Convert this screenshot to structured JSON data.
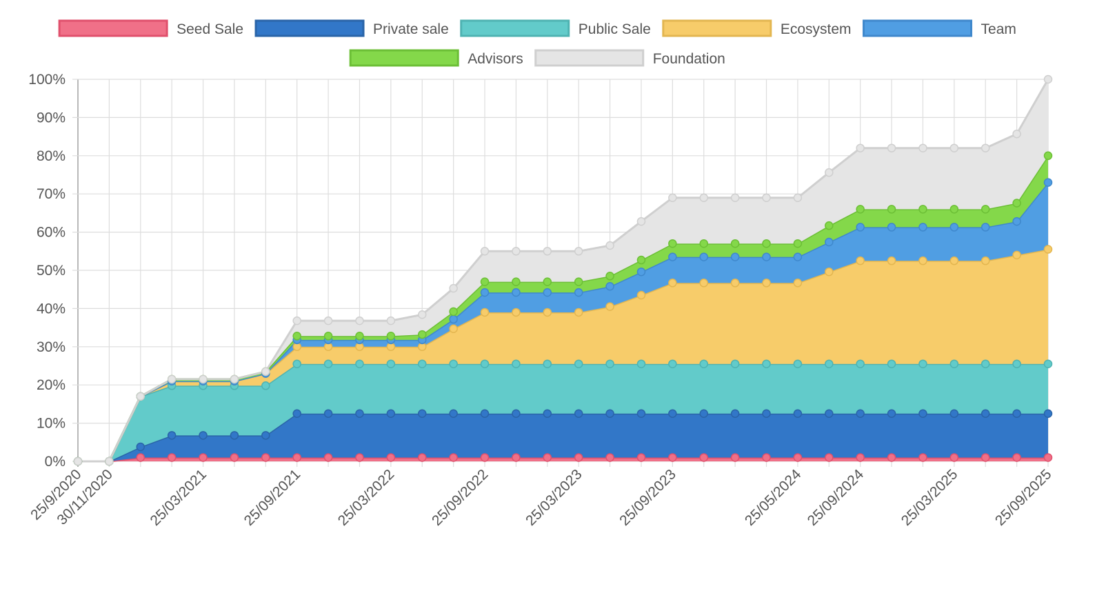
{
  "chart_data": {
    "type": "stacked-area",
    "legend": "top",
    "grid": true,
    "categories": [
      "25/9/2020",
      "30/11/2020",
      null,
      null,
      "25/03/2021",
      null,
      null,
      "25/09/2021",
      null,
      null,
      "25/03/2022",
      null,
      null,
      "25/09/2022",
      null,
      null,
      "25/03/2023",
      null,
      null,
      "25/09/2023",
      null,
      null,
      null,
      "25/05/2024",
      null,
      "25/09/2024",
      null,
      null,
      "25/03/2025",
      null,
      null,
      "25/09/2025"
    ],
    "ylim": [
      0,
      100
    ],
    "yticks": [
      {
        "value": 0,
        "label": "0%"
      },
      {
        "value": 10,
        "label": "10%"
      },
      {
        "value": 20,
        "label": "20%"
      },
      {
        "value": 30,
        "label": "30%"
      },
      {
        "value": 40,
        "label": "40%"
      },
      {
        "value": 50,
        "label": "50%"
      },
      {
        "value": 60,
        "label": "60%"
      },
      {
        "value": 70,
        "label": "70%"
      },
      {
        "value": 80,
        "label": "80%"
      },
      {
        "value": 90,
        "label": "90%"
      },
      {
        "value": 100,
        "label": "100%"
      }
    ],
    "series": [
      {
        "name": "Seed Sale",
        "color": "#f07088",
        "border": "#e0506c",
        "values": [
          0,
          0,
          1,
          1,
          1,
          1,
          1,
          1,
          1,
          1,
          1,
          1,
          1,
          1,
          1,
          1,
          1,
          1,
          1,
          1,
          1,
          1,
          1,
          1,
          1,
          1,
          1,
          1,
          1,
          1,
          1,
          1
        ]
      },
      {
        "name": "Private sale",
        "color": "#3277c8",
        "border": "#2a64a8",
        "values": [
          0,
          0,
          2.8,
          5.8,
          5.8,
          5.8,
          5.8,
          11.5,
          11.5,
          11.5,
          11.5,
          11.5,
          11.5,
          11.5,
          11.5,
          11.5,
          11.5,
          11.5,
          11.5,
          11.5,
          11.5,
          11.5,
          11.5,
          11.5,
          11.5,
          11.5,
          11.5,
          11.5,
          11.5,
          11.5,
          11.5,
          11.5
        ]
      },
      {
        "name": "Public Sale",
        "color": "#62cbca",
        "border": "#4eb3b2",
        "values": [
          0,
          0,
          13.2,
          13,
          13,
          13,
          13,
          13,
          13,
          13,
          13,
          13,
          13,
          13,
          13,
          13,
          13,
          13,
          13,
          13,
          13,
          13,
          13,
          13,
          13,
          13,
          13,
          13,
          13,
          13,
          13,
          13
        ]
      },
      {
        "name": "Ecosystem",
        "color": "#f7cc6a",
        "border": "#e3b650",
        "values": [
          0,
          0,
          0,
          1.2,
          1.2,
          1.2,
          3.2,
          4.5,
          4.5,
          4.5,
          4.5,
          4.5,
          9.2,
          13.5,
          13.5,
          13.5,
          13.5,
          15,
          18,
          21.2,
          21.2,
          21.2,
          21.2,
          21.2,
          24.1,
          27,
          27,
          27,
          27,
          27,
          28.5,
          30
        ]
      },
      {
        "name": "Team",
        "color": "#509ee3",
        "border": "#3f88cc",
        "values": [
          0,
          0,
          0,
          0,
          0,
          0,
          0,
          1.8,
          1.8,
          1.8,
          1.8,
          1.8,
          2.5,
          5.2,
          5.2,
          5.2,
          5.2,
          5.3,
          6.1,
          6.8,
          6.8,
          6.8,
          6.8,
          6.8,
          7.8,
          8.8,
          8.8,
          8.8,
          8.8,
          8.8,
          8.8,
          17.5
        ]
      },
      {
        "name": "Advisors",
        "color": "#84d84a",
        "border": "#6cbf36",
        "values": [
          0,
          0,
          0,
          0.5,
          0.5,
          0.5,
          0.5,
          1,
          1,
          1,
          1,
          1.4,
          2,
          2.8,
          2.8,
          2.8,
          2.8,
          2.7,
          3.1,
          3.5,
          3.5,
          3.5,
          3.5,
          3.5,
          4.3,
          4.7,
          4.7,
          4.7,
          4.7,
          4.7,
          4.8,
          7
        ]
      },
      {
        "name": "Foundation",
        "color": "#e5e5e5",
        "border": "#cfcfcf",
        "values": [
          0,
          0,
          0,
          0,
          0,
          0,
          0,
          4,
          4,
          4,
          4,
          5.2,
          6.1,
          8,
          8,
          8,
          8,
          8,
          10.1,
          12,
          12,
          12,
          12,
          12,
          13.9,
          16,
          16,
          16,
          16,
          16,
          18.1,
          20
        ]
      }
    ]
  }
}
